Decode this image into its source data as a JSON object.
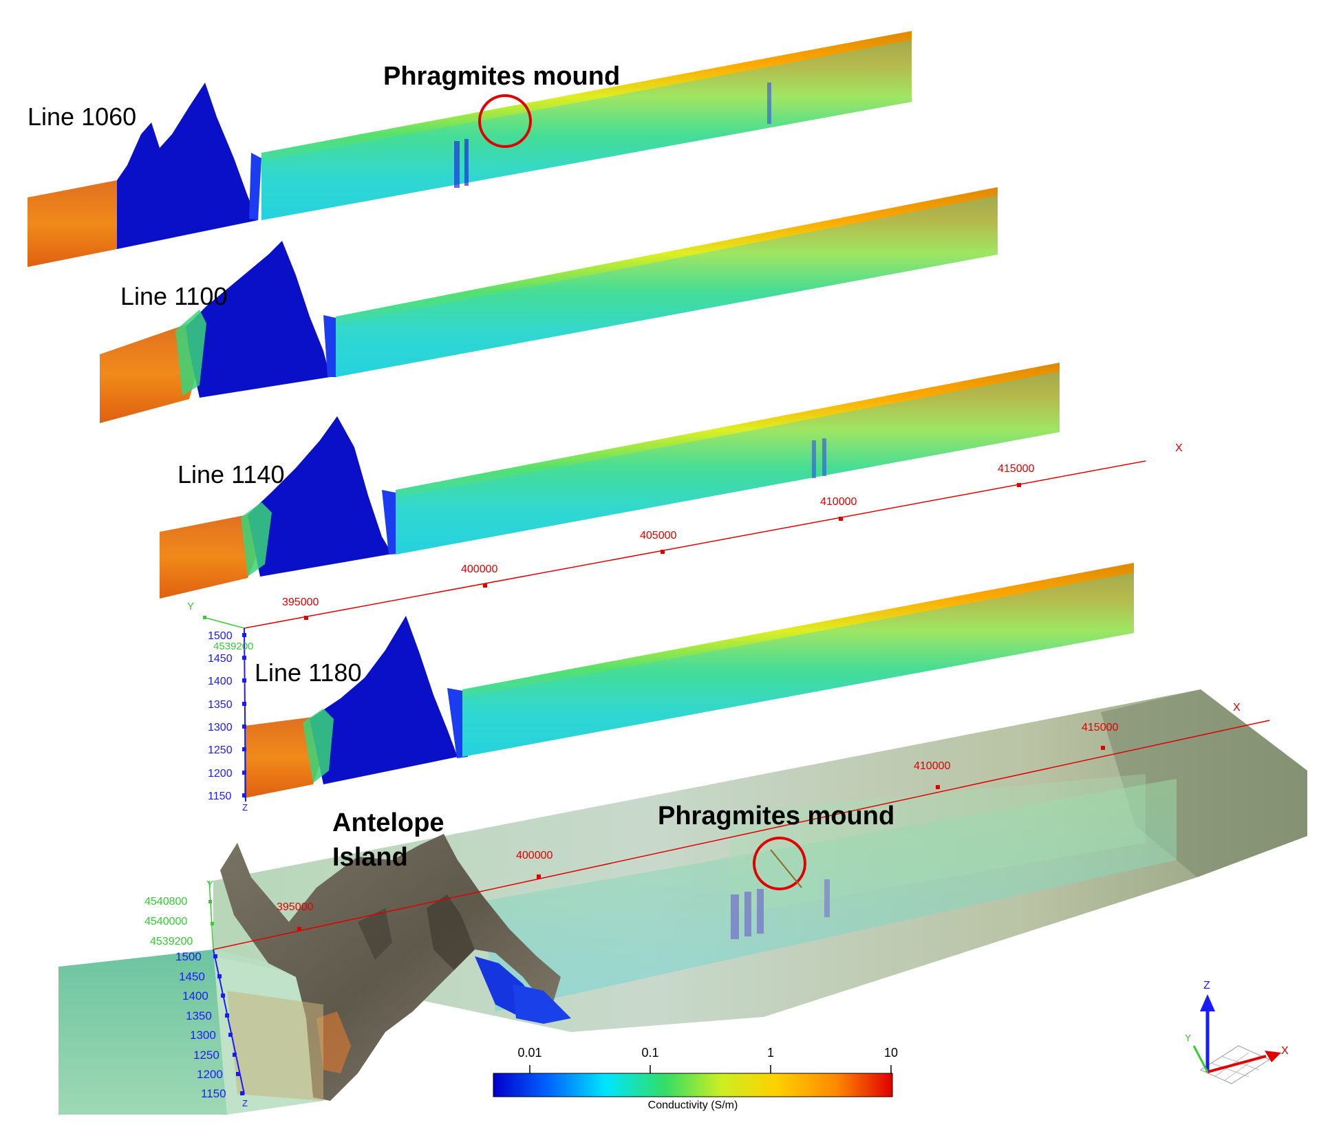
{
  "profiles": [
    {
      "label": "Line 1060"
    },
    {
      "label": "Line 1100"
    },
    {
      "label": "Line 1140"
    },
    {
      "label": "Line 1180"
    }
  ],
  "annotations": {
    "mound_top": "Phragmites mound",
    "mound_bottom": "Phragmites mound",
    "island_line1": "Antelope",
    "island_line2": "Island"
  },
  "axes_upper": {
    "x_ticks": [
      "395000",
      "400000",
      "405000",
      "410000",
      "415000"
    ],
    "x_label": "X",
    "y_label": "Y",
    "y_tick": "4539200",
    "z_ticks": [
      "1500",
      "1450",
      "1400",
      "1350",
      "1300",
      "1250",
      "1200",
      "1150"
    ],
    "z_label": "Z"
  },
  "axes_lower": {
    "x_ticks": [
      "395000",
      "400000",
      "410000",
      "415000"
    ],
    "x_label": "X",
    "y_label": "Y",
    "y_ticks": [
      "4540800",
      "4540000",
      "4539200"
    ],
    "z_ticks": [
      "1500",
      "1450",
      "1400",
      "1350",
      "1300",
      "1250",
      "1200",
      "1150"
    ],
    "z_label": "Z"
  },
  "colorbar": {
    "title": "Conductivity (S/m)",
    "ticks": [
      "0.01",
      "0.1",
      "1",
      "10"
    ],
    "colors": [
      "#0000cc",
      "#0066ff",
      "#00e5ff",
      "#33dd66",
      "#ccee22",
      "#ffd000",
      "#ff8800",
      "#e00000"
    ]
  },
  "orientation": {
    "x": "X",
    "y": "Y",
    "z": "Z"
  },
  "colors": {
    "axis_x": "#e00000",
    "axis_y": "#33cc33",
    "axis_z": "#1a1aff",
    "highlight": "#e00000"
  }
}
